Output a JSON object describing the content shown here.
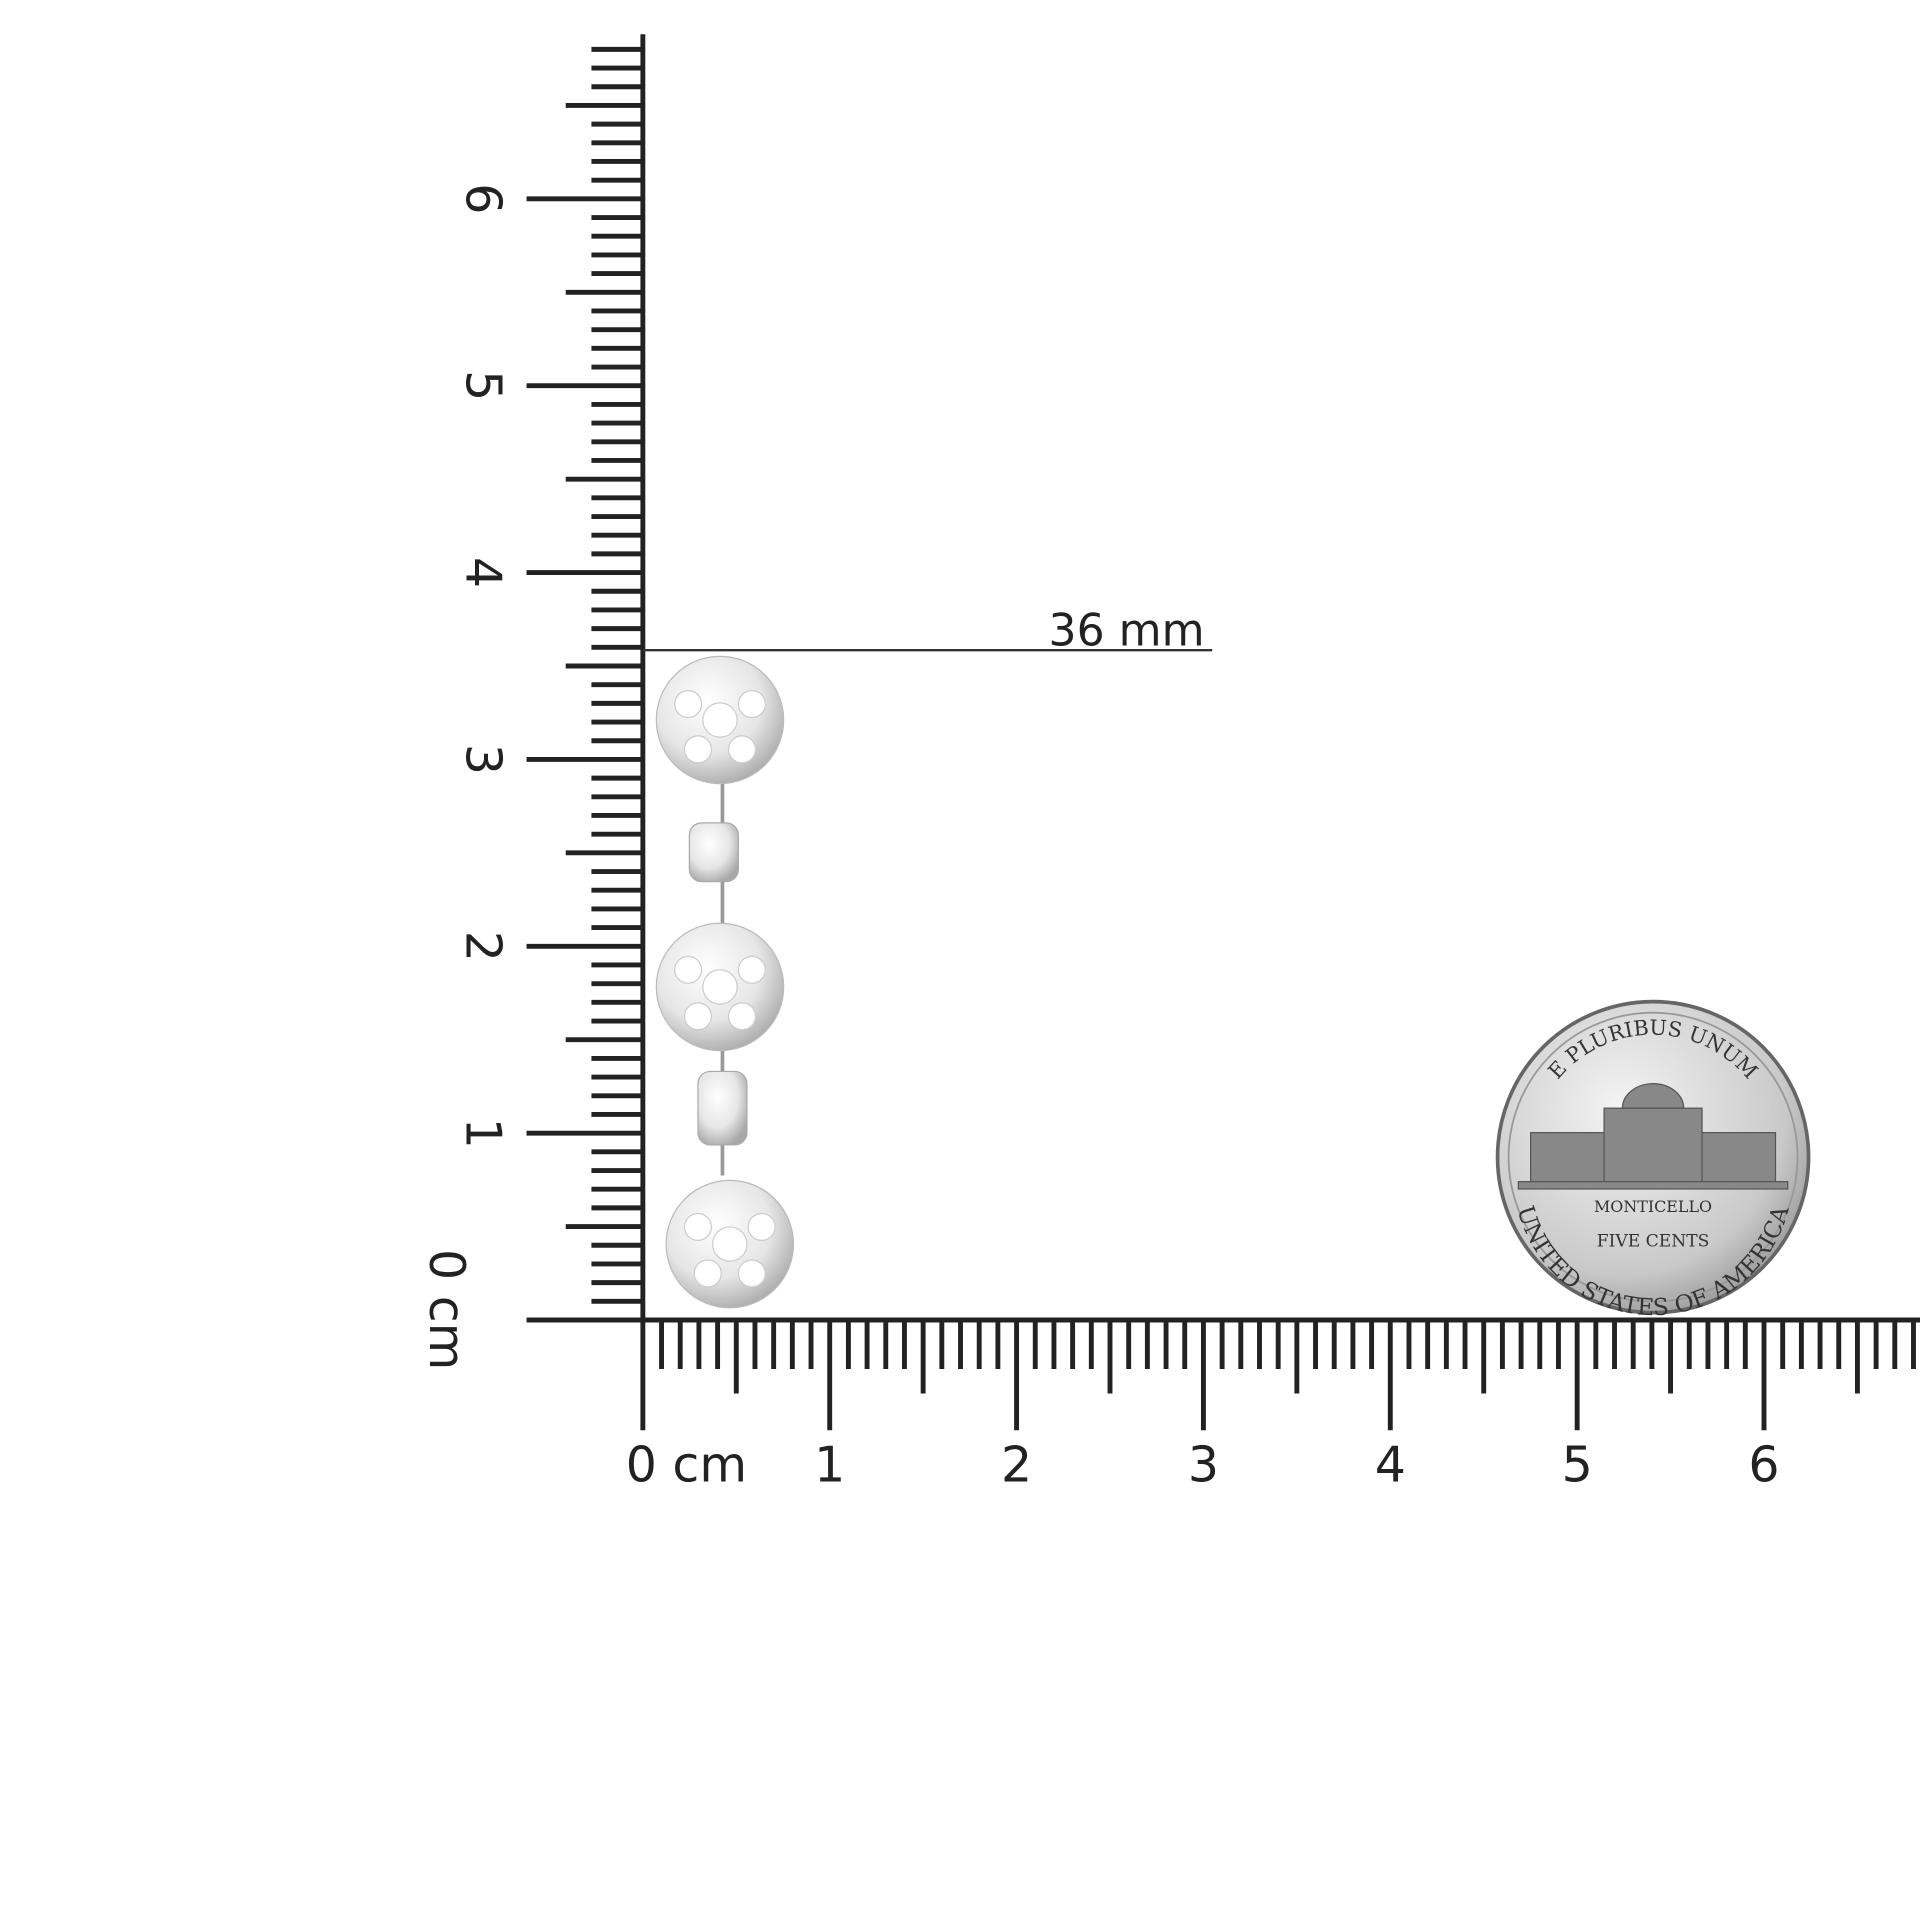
{
  "vertical_ruler": {
    "labels": [
      "0 cm",
      "1",
      "2",
      "3",
      "4",
      "5",
      "6"
    ]
  },
  "horizontal_ruler": {
    "labels": [
      "0 cm",
      "1",
      "2",
      "3",
      "4",
      "5",
      "6"
    ]
  },
  "measurement": {
    "label": "36 mm"
  },
  "coin": {
    "top_text": "E PLURIBUS UNUM",
    "building_text": "MONTICELLO",
    "value_text": "FIVE CENTS",
    "bottom_text": "UNITED STATES OF AMERICA"
  }
}
